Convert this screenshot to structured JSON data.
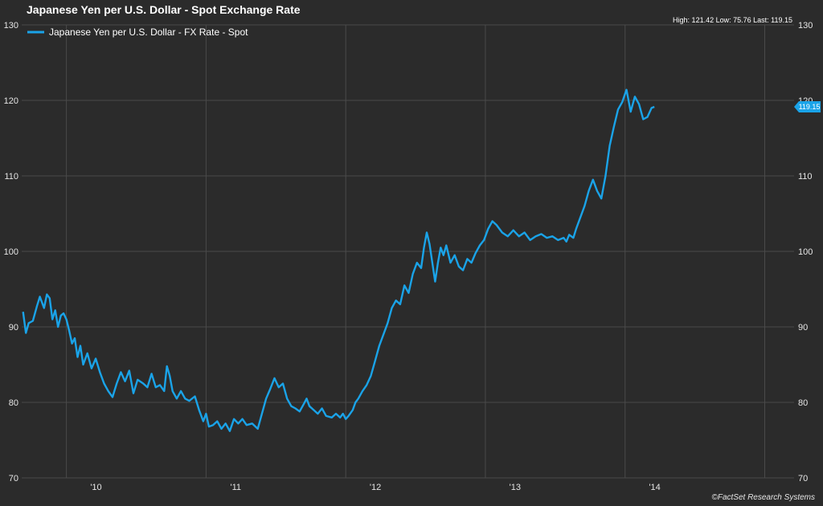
{
  "header": {
    "title": "Japanese Yen per U.S. Dollar - Spot Exchange Rate",
    "stats": "High: 121.42 Low: 75.76 Last: 119.15"
  },
  "footer": {
    "copyright": "©FactSet Research Systems"
  },
  "colors": {
    "background": "#2b2b2b",
    "grid": "#4a4a4a",
    "series": "#1aa3e8",
    "text": "#e6e6e6"
  },
  "chart_data": {
    "type": "line",
    "title": "Japanese Yen per U.S. Dollar - Spot Exchange Rate",
    "xlabel": "",
    "ylabel": "",
    "ylim": [
      70,
      130
    ],
    "y_ticks": [
      "70",
      "80",
      "90",
      "100",
      "110",
      "120",
      "130"
    ],
    "x_ticks": [
      "'10",
      "'11",
      "'12",
      "'13",
      "'14"
    ],
    "x_range": [
      2009.68,
      2015.21
    ],
    "grid": true,
    "legend_position": "top-left",
    "last_value_label": "119.15",
    "series": [
      {
        "name": "Japanese Yen per U.S. Dollar - FX Rate - Spot",
        "points": [
          [
            2009.69,
            92.0
          ],
          [
            2009.71,
            89.2
          ],
          [
            2009.73,
            90.5
          ],
          [
            2009.76,
            90.8
          ],
          [
            2009.79,
            92.8
          ],
          [
            2009.81,
            94.0
          ],
          [
            2009.84,
            92.5
          ],
          [
            2009.86,
            94.3
          ],
          [
            2009.88,
            93.8
          ],
          [
            2009.9,
            91.0
          ],
          [
            2009.92,
            92.2
          ],
          [
            2009.94,
            90.0
          ],
          [
            2009.96,
            91.5
          ],
          [
            2009.98,
            91.8
          ],
          [
            2010.0,
            91.0
          ],
          [
            2010.02,
            89.5
          ],
          [
            2010.04,
            87.8
          ],
          [
            2010.06,
            88.5
          ],
          [
            2010.08,
            86.0
          ],
          [
            2010.1,
            87.5
          ],
          [
            2010.12,
            85.0
          ],
          [
            2010.15,
            86.5
          ],
          [
            2010.18,
            84.5
          ],
          [
            2010.21,
            85.8
          ],
          [
            2010.24,
            84.0
          ],
          [
            2010.27,
            82.5
          ],
          [
            2010.3,
            81.5
          ],
          [
            2010.33,
            80.7
          ],
          [
            2010.36,
            82.5
          ],
          [
            2010.39,
            84.0
          ],
          [
            2010.42,
            82.8
          ],
          [
            2010.45,
            84.2
          ],
          [
            2010.48,
            81.2
          ],
          [
            2010.51,
            83.0
          ],
          [
            2010.55,
            82.5
          ],
          [
            2010.58,
            82.0
          ],
          [
            2010.61,
            83.8
          ],
          [
            2010.64,
            82.0
          ],
          [
            2010.67,
            82.3
          ],
          [
            2010.7,
            81.5
          ],
          [
            2010.72,
            84.8
          ],
          [
            2010.74,
            83.5
          ],
          [
            2010.76,
            81.5
          ],
          [
            2010.79,
            80.5
          ],
          [
            2010.82,
            81.5
          ],
          [
            2010.85,
            80.5
          ],
          [
            2010.88,
            80.2
          ],
          [
            2010.92,
            80.8
          ],
          [
            2010.95,
            79.0
          ],
          [
            2010.98,
            77.5
          ],
          [
            2011.0,
            78.5
          ],
          [
            2011.02,
            76.8
          ],
          [
            2011.05,
            77.0
          ],
          [
            2011.08,
            77.5
          ],
          [
            2011.11,
            76.5
          ],
          [
            2011.14,
            77.2
          ],
          [
            2011.17,
            76.2
          ],
          [
            2011.2,
            77.8
          ],
          [
            2011.23,
            77.2
          ],
          [
            2011.26,
            77.8
          ],
          [
            2011.29,
            77.0
          ],
          [
            2011.33,
            77.2
          ],
          [
            2011.37,
            76.5
          ],
          [
            2011.4,
            78.5
          ],
          [
            2011.43,
            80.5
          ],
          [
            2011.46,
            81.8
          ],
          [
            2011.49,
            83.2
          ],
          [
            2011.52,
            82.0
          ],
          [
            2011.55,
            82.5
          ],
          [
            2011.58,
            80.5
          ],
          [
            2011.61,
            79.5
          ],
          [
            2011.64,
            79.2
          ],
          [
            2011.67,
            78.8
          ],
          [
            2011.7,
            79.8
          ],
          [
            2011.72,
            80.5
          ],
          [
            2011.74,
            79.5
          ],
          [
            2011.77,
            79.0
          ],
          [
            2011.8,
            78.5
          ],
          [
            2011.83,
            79.2
          ],
          [
            2011.86,
            78.2
          ],
          [
            2011.9,
            78.0
          ],
          [
            2011.93,
            78.5
          ],
          [
            2011.96,
            78.0
          ],
          [
            2011.98,
            78.5
          ],
          [
            2012.0,
            77.8
          ],
          [
            2012.02,
            78.2
          ],
          [
            2012.05,
            79.0
          ],
          [
            2012.07,
            80.0
          ],
          [
            2012.09,
            80.5
          ],
          [
            2012.12,
            81.5
          ],
          [
            2012.15,
            82.3
          ],
          [
            2012.18,
            83.5
          ],
          [
            2012.21,
            85.5
          ],
          [
            2012.24,
            87.5
          ],
          [
            2012.27,
            89.0
          ],
          [
            2012.3,
            90.5
          ],
          [
            2012.33,
            92.5
          ],
          [
            2012.36,
            93.5
          ],
          [
            2012.39,
            93.0
          ],
          [
            2012.42,
            95.5
          ],
          [
            2012.45,
            94.5
          ],
          [
            2012.48,
            97.0
          ],
          [
            2012.51,
            98.5
          ],
          [
            2012.54,
            97.8
          ],
          [
            2012.56,
            100.5
          ],
          [
            2012.58,
            102.5
          ],
          [
            2012.6,
            101.0
          ],
          [
            2012.62,
            98.5
          ],
          [
            2012.64,
            96.0
          ],
          [
            2012.66,
            98.5
          ],
          [
            2012.68,
            100.5
          ],
          [
            2012.7,
            99.5
          ],
          [
            2012.72,
            100.8
          ],
          [
            2012.75,
            98.5
          ],
          [
            2012.78,
            99.5
          ],
          [
            2012.81,
            98.0
          ],
          [
            2012.84,
            97.5
          ],
          [
            2012.87,
            99.0
          ],
          [
            2012.9,
            98.5
          ],
          [
            2012.93,
            99.8
          ],
          [
            2012.96,
            100.8
          ],
          [
            2012.99,
            101.5
          ],
          [
            2013.02,
            103.0
          ],
          [
            2013.05,
            104.0
          ],
          [
            2013.08,
            103.5
          ],
          [
            2013.12,
            102.5
          ],
          [
            2013.16,
            102.0
          ],
          [
            2013.2,
            102.8
          ],
          [
            2013.24,
            102.0
          ],
          [
            2013.28,
            102.5
          ],
          [
            2013.32,
            101.5
          ],
          [
            2013.36,
            102.0
          ],
          [
            2013.4,
            102.3
          ],
          [
            2013.44,
            101.8
          ],
          [
            2013.48,
            102.0
          ],
          [
            2013.52,
            101.5
          ],
          [
            2013.56,
            101.8
          ],
          [
            2013.58,
            101.3
          ],
          [
            2013.6,
            102.2
          ],
          [
            2013.63,
            101.8
          ],
          [
            2013.65,
            103.0
          ],
          [
            2013.68,
            104.5
          ],
          [
            2013.71,
            106.0
          ],
          [
            2013.74,
            108.0
          ],
          [
            2013.77,
            109.5
          ],
          [
            2013.8,
            108.0
          ],
          [
            2013.83,
            107.0
          ],
          [
            2013.86,
            110.0
          ],
          [
            2013.89,
            114.0
          ],
          [
            2013.92,
            116.5
          ],
          [
            2013.95,
            118.8
          ],
          [
            2013.98,
            119.8
          ],
          [
            2014.01,
            121.42
          ],
          [
            2014.04,
            118.5
          ],
          [
            2014.07,
            120.5
          ],
          [
            2014.1,
            119.5
          ],
          [
            2014.13,
            117.5
          ],
          [
            2014.16,
            117.8
          ],
          [
            2014.19,
            119.0
          ],
          [
            2014.21,
            119.15
          ]
        ]
      }
    ]
  }
}
